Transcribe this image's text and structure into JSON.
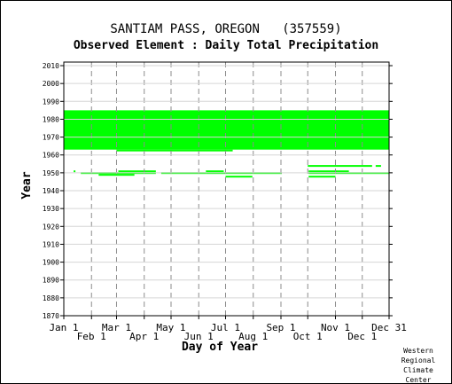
{
  "chart_data": {
    "type": "scatter",
    "title": "SANTIAM PASS, OREGON   (357559)",
    "subtitle": "Observed Element : Daily Total Precipitation",
    "xlabel": "Day of Year",
    "ylabel": "Year",
    "xlim": [
      1,
      365
    ],
    "ylim": [
      1870,
      2012
    ],
    "grid": true,
    "x_ticks": [
      {
        "label": "Jan 1",
        "day": 1,
        "row": "top"
      },
      {
        "label": "Feb 1",
        "day": 32,
        "row": "bottom"
      },
      {
        "label": "Mar 1",
        "day": 60,
        "row": "top"
      },
      {
        "label": "Apr 1",
        "day": 91,
        "row": "bottom"
      },
      {
        "label": "May 1",
        "day": 121,
        "row": "top"
      },
      {
        "label": "Jun 1",
        "day": 152,
        "row": "bottom"
      },
      {
        "label": "Jul 1",
        "day": 182,
        "row": "top"
      },
      {
        "label": "Aug 1",
        "day": 213,
        "row": "bottom"
      },
      {
        "label": "Sep 1",
        "day": 244,
        "row": "top"
      },
      {
        "label": "Oct 1",
        "day": 274,
        "row": "bottom"
      },
      {
        "label": "Nov 1",
        "day": 305,
        "row": "top"
      },
      {
        "label": "Dec 1",
        "day": 335,
        "row": "bottom"
      },
      {
        "label": "Dec 31",
        "day": 365,
        "row": "top"
      }
    ],
    "y_ticks": [
      1870,
      1880,
      1890,
      1900,
      1910,
      1920,
      1930,
      1940,
      1950,
      1960,
      1970,
      1980,
      1990,
      2000,
      2010
    ],
    "series": [
      {
        "color": "#00ff00",
        "segments": [
          {
            "year_start": 1963,
            "year_end": 1985,
            "day_start": 1,
            "day_end": 365
          },
          {
            "year_start": 1962,
            "year_end": 1963,
            "day_start": 60,
            "day_end": 190
          },
          {
            "year": 1951,
            "day_start": 12,
            "day_end": 14
          },
          {
            "year": 1950,
            "day_start": 20,
            "day_end": 40
          },
          {
            "year": 1950,
            "day_start": 40,
            "day_end": 62
          },
          {
            "year": 1949,
            "day_start": 40,
            "day_end": 62
          },
          {
            "year": 1951,
            "day_start": 62,
            "day_end": 104
          },
          {
            "year": 1950,
            "day_start": 62,
            "day_end": 104
          },
          {
            "year": 1949,
            "day_start": 62,
            "day_end": 80
          },
          {
            "year": 1950,
            "day_start": 110,
            "day_end": 160
          },
          {
            "year": 1951,
            "day_start": 160,
            "day_end": 180
          },
          {
            "year": 1950,
            "day_start": 160,
            "day_end": 185
          },
          {
            "year": 1948,
            "day_start": 182,
            "day_end": 212
          },
          {
            "year": 1950,
            "day_start": 185,
            "day_end": 245
          },
          {
            "year": 1954,
            "day_start": 274,
            "day_end": 346
          },
          {
            "year": 1954,
            "day_start": 350,
            "day_end": 356
          },
          {
            "year": 1951,
            "day_start": 275,
            "day_end": 320
          },
          {
            "year": 1950,
            "day_start": 275,
            "day_end": 365
          },
          {
            "year": 1948,
            "day_start": 275,
            "day_end": 305
          }
        ]
      }
    ]
  }
}
